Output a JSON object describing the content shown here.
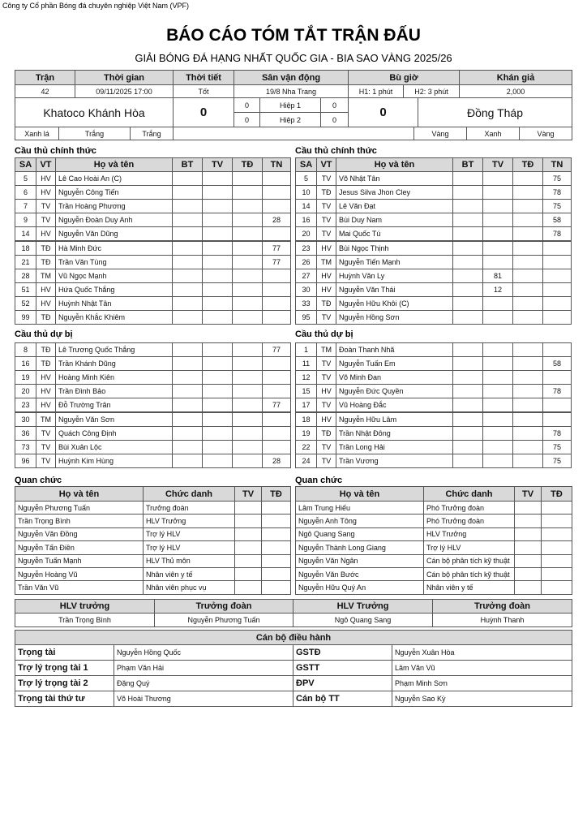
{
  "header": {
    "company": "Công ty Cổ phần Bóng đá chuyên nghiệp Việt Nam (VPF)",
    "title": "BÁO CÁO TÓM TẮT TRẬN ĐẤU",
    "subtitle": "GIẢI BÓNG ĐÁ HẠNG NHẤT QUỐC GIA - BIA SAO VÀNG 2025/26"
  },
  "match": {
    "columns": [
      "Trận",
      "Thời gian",
      "Thời tiết",
      "Sân vận động",
      "Bù giờ",
      "Khán giả"
    ],
    "number": 42,
    "time": "09/11/2025 17:00",
    "weather": "Tốt",
    "stadium": "19/8 Nha Trang",
    "stoppage": [
      "H1: 1 phút",
      "H2: 3 phút"
    ],
    "attendance": "2,000",
    "home": {
      "name": "Khatoco Khánh Hòa",
      "score": 0,
      "colors": [
        "Xanh lá",
        "Trắng",
        "Trắng"
      ]
    },
    "away": {
      "name": "Đồng Tháp",
      "score": 0,
      "colors": [
        "Vàng",
        "Xanh",
        "Vàng"
      ]
    },
    "halves": [
      {
        "label": "Hiệp 1",
        "home": 0,
        "away": 0
      },
      {
        "label": "Hiệp 2",
        "home": 0,
        "away": 0
      }
    ]
  },
  "teams": [
    {
      "starters_title": "Cầu thủ chính thức",
      "columns": [
        "SA",
        "VT",
        "Họ và tên",
        "BT",
        "TV",
        "TĐ",
        "TN"
      ],
      "starters": [
        {
          "no": 5,
          "pos": "HV",
          "name": "Lê Cao Hoài An (C)"
        },
        {
          "no": 6,
          "pos": "HV",
          "name": "Nguyễn Công Tiến"
        },
        {
          "no": 7,
          "pos": "TV",
          "name": "Trần Hoàng Phương"
        },
        {
          "no": 9,
          "pos": "TV",
          "name": "Nguyễn Đoàn Duy Anh",
          "tn": 28
        },
        {
          "no": 14,
          "pos": "HV",
          "name": "Nguyễn Văn Dũng"
        },
        {
          "no": 18,
          "pos": "TĐ",
          "name": "Hà Minh Đức",
          "tn": 77
        },
        {
          "no": 21,
          "pos": "TĐ",
          "name": "Trần Văn Tùng",
          "tn": 77
        },
        {
          "no": 28,
          "pos": "TM",
          "name": "Vũ Ngọc Mạnh"
        },
        {
          "no": 51,
          "pos": "HV",
          "name": "Hứa Quốc Thắng"
        },
        {
          "no": 52,
          "pos": "HV",
          "name": "Huỳnh Nhật Tân"
        },
        {
          "no": 99,
          "pos": "TĐ",
          "name": "Nguyễn Khắc Khiêm"
        }
      ],
      "subs_title": "Cầu thủ dự bị",
      "subs": [
        {
          "no": 8,
          "pos": "TĐ",
          "name": "Lê Trương Quốc Thắng",
          "tn": 77
        },
        {
          "no": 16,
          "pos": "TĐ",
          "name": "Trần Khánh Dũng"
        },
        {
          "no": 19,
          "pos": "HV",
          "name": "Hoàng Minh Kiên"
        },
        {
          "no": 20,
          "pos": "HV",
          "name": "Trần Đình Bảo"
        },
        {
          "no": 23,
          "pos": "HV",
          "name": "Đỗ Trường Trân",
          "tn": 77
        },
        {
          "no": 30,
          "pos": "TM",
          "name": "Nguyễn Văn Sơn"
        },
        {
          "no": 36,
          "pos": "TV",
          "name": "Quách Công Định"
        },
        {
          "no": 73,
          "pos": "TV",
          "name": "Bùi Xuân Lộc"
        },
        {
          "no": 96,
          "pos": "TV",
          "name": "Huỳnh Kim Hùng",
          "tn": 28
        }
      ],
      "staff_title": "Quan chức",
      "staff_columns": [
        "Họ và tên",
        "Chức danh",
        "TV",
        "TĐ"
      ],
      "staff": [
        {
          "name": "Nguyễn Phương Tuấn",
          "role": "Trưởng đoàn"
        },
        {
          "name": "Trần Trọng Bình",
          "role": "HLV Trưởng"
        },
        {
          "name": "Nguyễn Văn Đồng",
          "role": "Trợ lý HLV"
        },
        {
          "name": "Nguyễn Tấn Điền",
          "role": "Trợ lý HLV"
        },
        {
          "name": "Nguyễn Tuấn Mạnh",
          "role": "HLV Thủ môn"
        },
        {
          "name": "Nguyễn Hoàng Vũ",
          "role": "Nhân viên y tế"
        },
        {
          "name": "Trần Văn Vũ",
          "role": "Nhân viên phục vụ"
        }
      ]
    },
    {
      "starters_title": "Cầu thủ chính thức",
      "columns": [
        "SA",
        "VT",
        "Họ và tên",
        "BT",
        "TV",
        "TĐ",
        "TN"
      ],
      "starters": [
        {
          "no": 5,
          "pos": "TV",
          "name": "Võ Nhật Tân",
          "tn": 75
        },
        {
          "no": 10,
          "pos": "TĐ",
          "name": "Jesus Silva Jhon Cley",
          "tn": 78
        },
        {
          "no": 14,
          "pos": "TV",
          "name": "Lê Văn Đạt",
          "tn": 75
        },
        {
          "no": 16,
          "pos": "TV",
          "name": "Bùi Duy Nam",
          "tn": 58
        },
        {
          "no": 20,
          "pos": "TV",
          "name": "Mai Quốc Tú",
          "tn": 78
        },
        {
          "no": 23,
          "pos": "HV",
          "name": "Bùi Ngọc Thịnh"
        },
        {
          "no": 26,
          "pos": "TM",
          "name": "Nguyễn Tiến Mạnh"
        },
        {
          "no": 27,
          "pos": "HV",
          "name": "Huỳnh Văn Ly",
          "tv": 81
        },
        {
          "no": 30,
          "pos": "HV",
          "name": "Nguyễn Văn Thái",
          "tv": 12
        },
        {
          "no": 33,
          "pos": "TĐ",
          "name": "Nguyễn Hữu Khôi (C)"
        },
        {
          "no": 95,
          "pos": "TV",
          "name": "Nguyễn Hồng Sơn"
        }
      ],
      "subs_title": "Cầu thủ dự bị",
      "subs": [
        {
          "no": 1,
          "pos": "TM",
          "name": "Đoàn Thanh Nhã"
        },
        {
          "no": 11,
          "pos": "TV",
          "name": "Nguyễn Tuấn Em",
          "tn": 58
        },
        {
          "no": 12,
          "pos": "TV",
          "name": "Võ Minh Đan"
        },
        {
          "no": 15,
          "pos": "HV",
          "name": "Nguyễn Đức Quyền",
          "tn": 78
        },
        {
          "no": 17,
          "pos": "TV",
          "name": "Vũ Hoàng Đắc"
        },
        {
          "no": 18,
          "pos": "HV",
          "name": "Nguyễn Hữu Lâm"
        },
        {
          "no": 19,
          "pos": "TĐ",
          "name": "Trần Nhật Đông",
          "tn": 78
        },
        {
          "no": 22,
          "pos": "TV",
          "name": "Trần Long Hải",
          "tn": 75
        },
        {
          "no": 24,
          "pos": "TV",
          "name": "Trần Vương",
          "tn": 75
        }
      ],
      "staff_title": "Quan chức",
      "staff_columns": [
        "Họ và tên",
        "Chức danh",
        "TV",
        "TĐ"
      ],
      "staff": [
        {
          "name": "Lâm Trung Hiếu",
          "role": "Phó Trưởng đoàn"
        },
        {
          "name": "Nguyễn Anh Tông",
          "role": "Phó Trưởng đoàn"
        },
        {
          "name": "Ngô Quang Sang",
          "role": "HLV Trưởng"
        },
        {
          "name": "Nguyễn Thành Long Giang",
          "role": "Trợ lý HLV"
        },
        {
          "name": "Nguyễn Văn Ngân",
          "role": "Cán bộ phân tích kỹ thuật"
        },
        {
          "name": "Nguyễn Văn Bước",
          "role": "Cán bộ phân tích kỹ thuật"
        },
        {
          "name": "Nguyễn Hữu Quý An",
          "role": "Nhân viên y tế"
        }
      ]
    }
  ],
  "summary": {
    "columns": [
      "HLV trưởng",
      "Trưởng đoàn",
      "HLV Trưởng",
      "Trưởng đoàn"
    ],
    "values": [
      "Trần Trọng Bình",
      "Nguyễn Phương Tuấn",
      "Ngô Quang Sang",
      "Huỳnh Thanh"
    ]
  },
  "referees": {
    "title": "Cán bộ điều hành",
    "rows": [
      [
        "Trọng tài",
        "Nguyễn Hồng Quốc",
        "GSTĐ",
        "Nguyễn Xuân Hòa"
      ],
      [
        "Trợ lý trọng tài 1",
        "Phạm Văn Hải",
        "GSTT",
        "Lâm Văn Vũ"
      ],
      [
        "Trợ lý trọng tài 2",
        "Đặng Quý",
        "ĐPV",
        "Phạm Minh Sơn"
      ],
      [
        "Trọng tài thứ tư",
        "Võ Hoài Thương",
        "Cán bộ TT",
        "Nguyễn Sao Kỳ"
      ]
    ]
  }
}
